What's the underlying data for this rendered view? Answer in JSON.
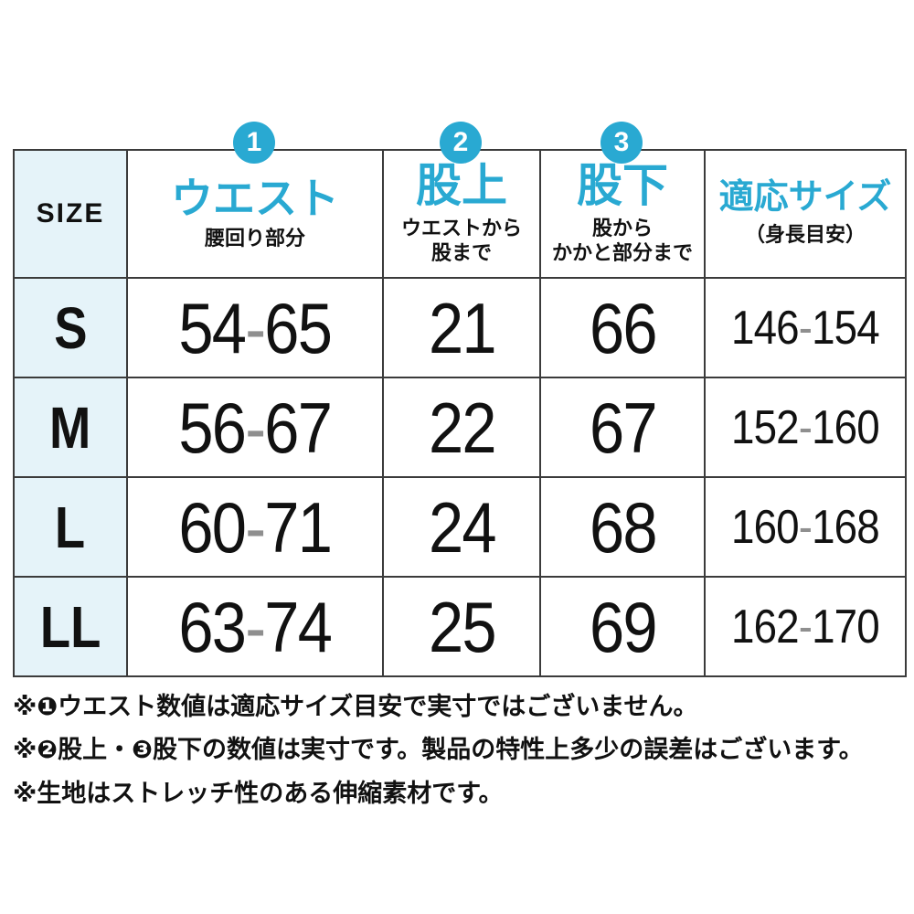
{
  "colors": {
    "accent": "#29a9d2",
    "cell-bg": "#e5f3f9",
    "border": "#3b3b3b",
    "dash": "#8f8f8f"
  },
  "table": {
    "size_header": "SIZE",
    "columns": [
      {
        "badge": "1",
        "title": "ウエスト",
        "subtitle": "腰回り部分"
      },
      {
        "badge": "2",
        "title": "股上",
        "subtitle": "ウエストから\n股まで"
      },
      {
        "badge": "3",
        "title": "股下",
        "subtitle": "股から\nかかと部分まで"
      },
      {
        "title": "適応サイズ",
        "subtitle": "（身長目安）"
      }
    ],
    "rows": [
      {
        "size": "S",
        "waist": "54-65",
        "rise": "21",
        "inseam": "66",
        "height": "146-154"
      },
      {
        "size": "M",
        "waist": "56-67",
        "rise": "22",
        "inseam": "67",
        "height": "152-160"
      },
      {
        "size": "L",
        "waist": "60-71",
        "rise": "24",
        "inseam": "68",
        "height": "160-168"
      },
      {
        "size": "LL",
        "waist": "63-74",
        "rise": "25",
        "inseam": "69",
        "height": "162-170"
      }
    ]
  },
  "notes": [
    "※❶ウエスト数値は適応サイズ目安で実寸ではございません。",
    "※❷股上・❸股下の数値は実寸です。製品の特性上多少の誤差はございます。",
    "※生地はストレッチ性のある伸縮素材です。"
  ]
}
